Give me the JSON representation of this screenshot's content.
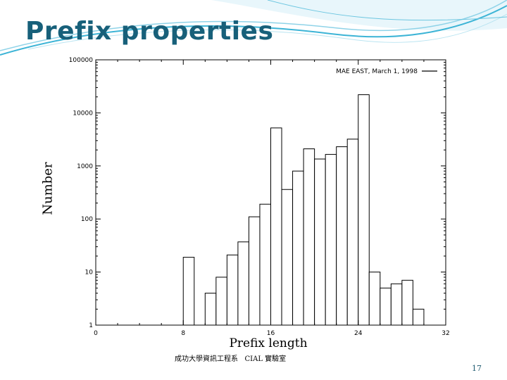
{
  "slide": {
    "title": "Prefix properties",
    "footer": "成功大學資訊工程系   CIAL 實驗室",
    "page_number": "17",
    "colors": {
      "title": "#17607a",
      "accent": "#3cb4d6"
    }
  },
  "chart_data": {
    "type": "bar",
    "xlabel": "Prefix length",
    "ylabel": "Number",
    "xlim": [
      0,
      32
    ],
    "ylim": [
      1,
      100000
    ],
    "yscale": "log",
    "grid": false,
    "legend": "top-right",
    "x_ticks": [
      "0",
      "8",
      "16",
      "24",
      "32"
    ],
    "y_ticks": [
      "1",
      "10",
      "100",
      "1000",
      "10000",
      "100000"
    ],
    "series": [
      {
        "name": "MAE EAST, March 1, 1998",
        "x": [
          8,
          10,
          11,
          12,
          13,
          14,
          15,
          16,
          17,
          18,
          19,
          20,
          21,
          22,
          23,
          24,
          25,
          26,
          27,
          28,
          29
        ],
        "values": [
          19,
          4,
          8,
          21,
          37,
          110,
          190,
          5200,
          360,
          800,
          2100,
          1350,
          1650,
          2300,
          3200,
          22000,
          10,
          5,
          6,
          7,
          2
        ]
      }
    ]
  }
}
